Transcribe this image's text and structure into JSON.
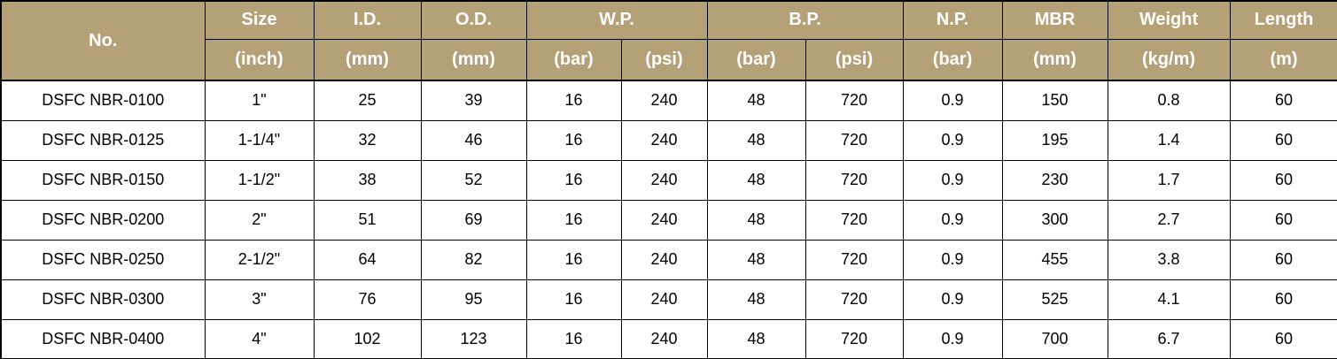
{
  "colors": {
    "header_background": "#b4a177",
    "header_text": "#ffffff",
    "body_text": "#000000",
    "border": "#000000",
    "body_background": "#ffffff"
  },
  "chart_data": {
    "type": "table",
    "header": {
      "no": "No.",
      "size": "Size",
      "size_unit": "(inch)",
      "id": "I.D.",
      "id_unit": "(mm)",
      "od": "O.D.",
      "od_unit": "(mm)",
      "wp": "W.P.",
      "wp_unit_bar": "(bar)",
      "wp_unit_psi": "(psi)",
      "bp": "B.P.",
      "bp_unit_bar": "(bar)",
      "bp_unit_psi": "(psi)",
      "np": "N.P.",
      "np_unit": "(bar)",
      "mbr": "MBR",
      "mbr_unit": "(mm)",
      "weight": "Weight",
      "weight_unit": "(kg/m)",
      "length": "Length",
      "length_unit": "(m)"
    },
    "columns": [
      "No.",
      "Size (inch)",
      "I.D. (mm)",
      "O.D. (mm)",
      "W.P. (bar)",
      "W.P. (psi)",
      "B.P. (bar)",
      "B.P. (psi)",
      "N.P. (bar)",
      "MBR (mm)",
      "Weight (kg/m)",
      "Length (m)"
    ],
    "rows": [
      [
        "DSFC NBR-0100",
        "1\"",
        "25",
        "39",
        "16",
        "240",
        "48",
        "720",
        "0.9",
        "150",
        "0.8",
        "60"
      ],
      [
        "DSFC NBR-0125",
        "1-1/4\"",
        "32",
        "46",
        "16",
        "240",
        "48",
        "720",
        "0.9",
        "195",
        "1.4",
        "60"
      ],
      [
        "DSFC NBR-0150",
        "1-1/2\"",
        "38",
        "52",
        "16",
        "240",
        "48",
        "720",
        "0.9",
        "230",
        "1.7",
        "60"
      ],
      [
        "DSFC NBR-0200",
        "2\"",
        "51",
        "69",
        "16",
        "240",
        "48",
        "720",
        "0.9",
        "300",
        "2.7",
        "60"
      ],
      [
        "DSFC NBR-0250",
        "2-1/2\"",
        "64",
        "82",
        "16",
        "240",
        "48",
        "720",
        "0.9",
        "455",
        "3.8",
        "60"
      ],
      [
        "DSFC NBR-0300",
        "3\"",
        "76",
        "95",
        "16",
        "240",
        "48",
        "720",
        "0.9",
        "525",
        "4.1",
        "60"
      ],
      [
        "DSFC NBR-0400",
        "4\"",
        "102",
        "123",
        "16",
        "240",
        "48",
        "720",
        "0.9",
        "700",
        "6.7",
        "60"
      ]
    ]
  }
}
